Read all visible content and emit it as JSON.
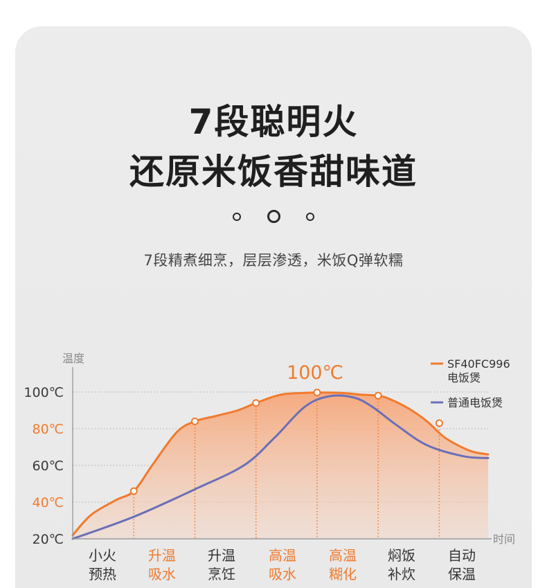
{
  "heading": {
    "line1": "7段聪明火",
    "line2": "还原米饭香甜味道",
    "subtitle": "7段精煮细烹，层层渗透，米饭Q弹软糯"
  },
  "colors": {
    "orange": "#f07a2e",
    "blue": "#6a6fb8",
    "dark": "#333333"
  },
  "chart_data": {
    "type": "line",
    "ylabel": "温度",
    "xlabel": "时间",
    "ylim": [
      20,
      100
    ],
    "y_ticks": [
      {
        "value": 100,
        "label": "100℃",
        "highlight": false
      },
      {
        "value": 80,
        "label": "80℃",
        "highlight": true
      },
      {
        "value": 60,
        "label": "60℃",
        "highlight": false
      },
      {
        "value": 40,
        "label": "40℃",
        "highlight": true
      },
      {
        "value": 20,
        "label": "20℃",
        "highlight": false
      }
    ],
    "stages": [
      {
        "line1": "小火",
        "line2": "预热",
        "highlight": false
      },
      {
        "line1": "升温",
        "line2": "吸水",
        "highlight": true
      },
      {
        "line1": "升温",
        "line2": "烹饪",
        "highlight": false
      },
      {
        "line1": "高温",
        "line2": "吸水",
        "highlight": true
      },
      {
        "line1": "高温",
        "line2": "糊化",
        "highlight": true
      },
      {
        "line1": "焖饭",
        "line2": "补炊",
        "highlight": false
      },
      {
        "line1": "自动",
        "line2": "保温",
        "highlight": false
      }
    ],
    "peak_label": "100℃",
    "legend_position": "top-right",
    "series": [
      {
        "name": "SF40FC996电饭煲",
        "name_line1": "SF40FC996",
        "name_line2": "电饭煲",
        "color": "#f07a2e",
        "filled": true,
        "x": [
          0,
          0.3,
          0.7,
          1.0,
          1.3,
          1.7,
          2.0,
          2.35,
          2.7,
          3.0,
          3.4,
          3.8,
          4.1,
          4.4,
          4.7,
          5.0,
          5.2,
          5.5,
          5.8,
          6.1,
          6.5,
          6.8
        ],
        "y": [
          22,
          33,
          41,
          46,
          60,
          78,
          84,
          87,
          90,
          94,
          98.5,
          99.5,
          99.7,
          99.5,
          98.6,
          98,
          96,
          91,
          84,
          75,
          68,
          66
        ],
        "markers": [
          [
            1.0,
            46
          ],
          [
            2.0,
            84
          ],
          [
            3.0,
            94
          ],
          [
            4.0,
            99.7
          ],
          [
            5.0,
            98
          ],
          [
            6.0,
            83
          ]
        ]
      },
      {
        "name": "普通电饭煲",
        "color": "#6a6fb8",
        "filled": false,
        "x": [
          0,
          1.0,
          2.0,
          2.8,
          3.3,
          3.8,
          4.2,
          4.6,
          4.9,
          5.3,
          5.8,
          6.4,
          6.8
        ],
        "y": [
          20,
          32,
          47,
          60,
          75,
          92,
          97.7,
          97,
          92,
          82,
          71,
          65,
          64
        ]
      }
    ]
  }
}
